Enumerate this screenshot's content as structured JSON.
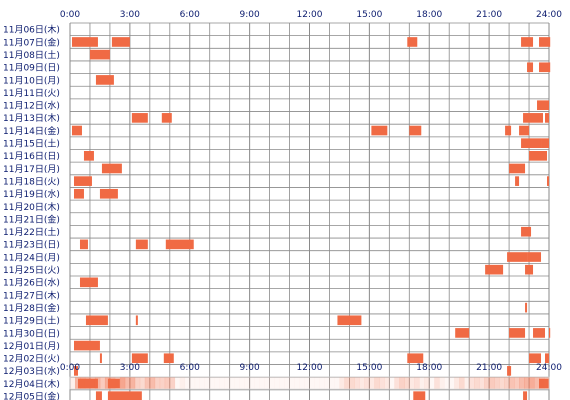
{
  "chart_data": {
    "type": "heatmap",
    "xlim": [
      0,
      24
    ],
    "x_ticks": [
      "0:00",
      "3:00",
      "6:00",
      "9:00",
      "12:00",
      "15:00",
      "18:00",
      "21:00",
      "24:00"
    ],
    "grid": true,
    "bar_color": "#f06a44",
    "grid_color": "#8a8a8a",
    "label_color": "#0b1b6e",
    "rows": [
      {
        "label": "11月06日(木)",
        "segments": []
      },
      {
        "label": "11月07日(金)",
        "segments": [
          [
            0.1,
            1.4
          ],
          [
            2.1,
            3.0
          ],
          [
            16.9,
            17.4
          ],
          [
            22.6,
            23.2
          ],
          [
            23.5,
            24.0
          ],
          [
            24.0,
            24.0
          ]
        ]
      },
      {
        "label": "11月08日(土)",
        "segments": [
          [
            1.0,
            2.0
          ]
        ]
      },
      {
        "label": "11月09日(日)",
        "segments": [
          [
            22.9,
            23.2
          ],
          [
            23.5,
            24.0
          ],
          [
            24.0,
            24.0
          ]
        ]
      },
      {
        "label": "11月10日(月)",
        "segments": [
          [
            1.3,
            2.2
          ]
        ]
      },
      {
        "label": "11月11日(火)",
        "segments": []
      },
      {
        "label": "11月12日(水)",
        "segments": [
          [
            23.4,
            24.0
          ]
        ]
      },
      {
        "label": "11月13日(木)",
        "segments": [
          [
            3.1,
            3.9
          ],
          [
            4.6,
            5.1
          ],
          [
            22.7,
            23.0
          ],
          [
            23.0,
            23.7
          ],
          [
            23.8,
            24.0
          ]
        ]
      },
      {
        "label": "11月14日(金)",
        "segments": [
          [
            0.1,
            0.6
          ],
          [
            15.1,
            15.9
          ],
          [
            17.0,
            17.6
          ],
          [
            21.8,
            22.1
          ],
          [
            22.5,
            23.0
          ]
        ]
      },
      {
        "label": "11月15日(土)",
        "segments": [
          [
            22.6,
            23.6
          ],
          [
            23.6,
            24.0
          ]
        ]
      },
      {
        "label": "11月16日(日)",
        "segments": [
          [
            0.7,
            1.2
          ],
          [
            23.0,
            23.9
          ]
        ]
      },
      {
        "label": "11月17日(月)",
        "segments": [
          [
            1.6,
            2.6
          ],
          [
            22.0,
            22.8
          ]
        ]
      },
      {
        "label": "11月18日(火)",
        "segments": [
          [
            0.2,
            1.1
          ],
          [
            22.3,
            22.5
          ],
          [
            23.9,
            24.0
          ]
        ]
      },
      {
        "label": "11月19日(水)",
        "segments": [
          [
            0.2,
            0.7
          ],
          [
            1.5,
            2.4
          ]
        ]
      },
      {
        "label": "11月20日(木)",
        "segments": []
      },
      {
        "label": "11月21日(金)",
        "segments": []
      },
      {
        "label": "11月22日(土)",
        "segments": [
          [
            22.6,
            23.1
          ]
        ]
      },
      {
        "label": "11月23日(日)",
        "segments": [
          [
            0.5,
            0.9
          ],
          [
            3.3,
            3.9
          ],
          [
            4.8,
            6.2
          ]
        ]
      },
      {
        "label": "11月24日(月)",
        "segments": [
          [
            21.9,
            22.9
          ],
          [
            22.9,
            23.6
          ]
        ]
      },
      {
        "label": "11月25日(火)",
        "segments": [
          [
            20.8,
            21.7
          ],
          [
            22.8,
            23.2
          ]
        ]
      },
      {
        "label": "11月26日(水)",
        "segments": [
          [
            0.5,
            1.4
          ]
        ]
      },
      {
        "label": "11月27日(木)",
        "segments": []
      },
      {
        "label": "11月28日(金)",
        "segments": [
          [
            22.8,
            22.9
          ]
        ]
      },
      {
        "label": "11月29日(土)",
        "segments": [
          [
            0.8,
            1.9
          ],
          [
            3.3,
            3.4
          ],
          [
            13.4,
            14.6
          ]
        ]
      },
      {
        "label": "11月30日(日)",
        "segments": [
          [
            19.3,
            20.0
          ],
          [
            22.0,
            22.8
          ],
          [
            23.2,
            23.8
          ],
          [
            24.0,
            24.0
          ]
        ]
      },
      {
        "label": "12月01日(月)",
        "segments": [
          [
            0.2,
            1.5
          ]
        ]
      },
      {
        "label": "12月02日(火)",
        "segments": [
          [
            1.5,
            1.6
          ],
          [
            3.1,
            3.9
          ],
          [
            4.7,
            5.2
          ],
          [
            16.9,
            17.7
          ],
          [
            23.0,
            23.6
          ],
          [
            23.8,
            24.0
          ]
        ]
      },
      {
        "label": "12月03日(水)",
        "segments": [
          [
            0.2,
            0.4
          ],
          [
            21.9,
            22.1
          ]
        ]
      },
      {
        "label": "12月04日(木)",
        "segments": [
          [
            0.4,
            1.4
          ],
          [
            1.9,
            2.5
          ],
          [
            23.5,
            24.0
          ]
        ]
      },
      {
        "label": "12月05日(金)",
        "segments": [
          [
            1.3,
            1.6
          ],
          [
            1.9,
            3.6
          ],
          [
            17.2,
            17.8
          ],
          [
            22.7,
            22.9
          ]
        ]
      }
    ],
    "density_strip": [
      0.1,
      0.5,
      0.55,
      0.5,
      0.4,
      0.5,
      0.35,
      0.55,
      0.45,
      0.3,
      0.6,
      0.45,
      0.5,
      0.3,
      0.25,
      0.4,
      0.45,
      0.3,
      0.3,
      0.35,
      0.3,
      0.05,
      0.1,
      0.05,
      0.05,
      0.05,
      0.05,
      0.05,
      0.05,
      0.05,
      0.05,
      0.05,
      0.05,
      0.05,
      0.05,
      0.05,
      0.05,
      0.05,
      0.05,
      0.05,
      0.05,
      0.05,
      0.05,
      0.05,
      0.05,
      0.05,
      0.05,
      0.05,
      0.05,
      0.05,
      0.05,
      0.05,
      0.05,
      0.05,
      0.15,
      0.25,
      0.25,
      0.2,
      0.15,
      0.2,
      0.15,
      0.25,
      0.2,
      0.15,
      0.05,
      0.2,
      0.3,
      0.25,
      0.15,
      0.2,
      0.1,
      0.15,
      0.05,
      0.2,
      0.1,
      0.05,
      0.05,
      0.15,
      0.25,
      0.1,
      0.2,
      0.25,
      0.2,
      0.3,
      0.35,
      0.3,
      0.25,
      0.3,
      0.4,
      0.35,
      0.45,
      0.5,
      0.55,
      0.45,
      0.4,
      0.35
    ]
  }
}
